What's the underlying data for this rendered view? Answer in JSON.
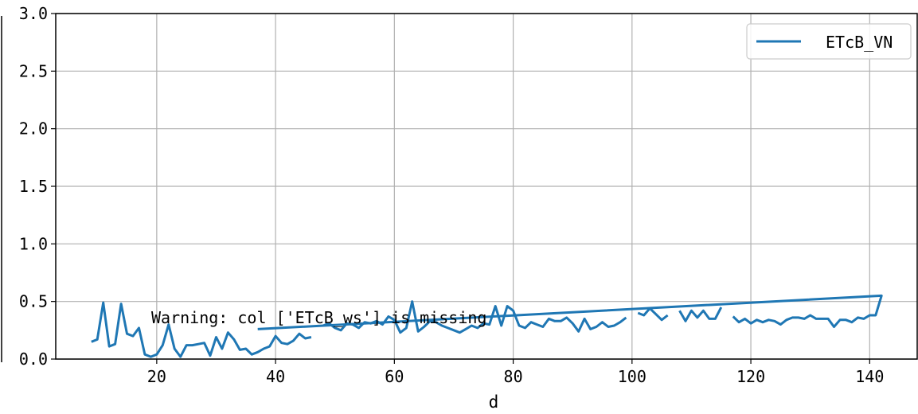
{
  "chart_data": {
    "type": "line",
    "title": "",
    "xlabel": "d",
    "ylabel": "",
    "xlim": [
      3,
      148
    ],
    "ylim": [
      0,
      3.0
    ],
    "x_ticks": [
      20,
      40,
      60,
      80,
      100,
      120,
      140
    ],
    "y_ticks": [
      0.0,
      0.5,
      1.0,
      1.5,
      2.0,
      2.5,
      3.0
    ],
    "x_tick_labels": [
      "20",
      "40",
      "60",
      "80",
      "100",
      "120",
      "140"
    ],
    "y_tick_labels": [
      "0.0",
      "0.5",
      "1.0",
      "1.5",
      "2.0",
      "2.5",
      "3.0"
    ],
    "grid": true,
    "legend": {
      "position": "top-right",
      "entries": [
        "ETcB_VN"
      ]
    },
    "annotation": "Warning: col ['ETcB_ws'] is missing",
    "series": [
      {
        "name": "ETcB_VN",
        "color": "#1f77b4",
        "segments": [
          [
            [
              9,
              0.15
            ],
            [
              10,
              0.17
            ],
            [
              11,
              0.49
            ],
            [
              12,
              0.11
            ],
            [
              13,
              0.13
            ],
            [
              14,
              0.48
            ],
            [
              15,
              0.22
            ],
            [
              16,
              0.2
            ],
            [
              17,
              0.27
            ],
            [
              18,
              0.04
            ],
            [
              19,
              0.02
            ],
            [
              20,
              0.04
            ],
            [
              21,
              0.12
            ],
            [
              22,
              0.3
            ],
            [
              23,
              0.09
            ],
            [
              24,
              0.02
            ],
            [
              25,
              0.12
            ],
            [
              26,
              0.12
            ],
            [
              27,
              0.13
            ],
            [
              28,
              0.14
            ],
            [
              29,
              0.03
            ],
            [
              30,
              0.19
            ],
            [
              31,
              0.09
            ],
            [
              32,
              0.23
            ],
            [
              33,
              0.17
            ],
            [
              34,
              0.08
            ],
            [
              35,
              0.09
            ],
            [
              36,
              0.04
            ],
            [
              37,
              0.06
            ],
            [
              38,
              0.09
            ],
            [
              39,
              0.11
            ],
            [
              40,
              0.2
            ],
            [
              41,
              0.14
            ],
            [
              42,
              0.13
            ],
            [
              43,
              0.16
            ],
            [
              44,
              0.22
            ],
            [
              45,
              0.18
            ],
            [
              46,
              0.19
            ]
          ],
          [
            [
              48,
              0.29
            ],
            [
              49,
              0.31
            ],
            [
              50,
              0.27
            ],
            [
              51,
              0.25
            ],
            [
              52,
              0.31
            ],
            [
              53,
              0.3
            ],
            [
              54,
              0.27
            ],
            [
              55,
              0.32
            ],
            [
              56,
              0.31
            ],
            [
              57,
              0.33
            ],
            [
              58,
              0.3
            ],
            [
              59,
              0.37
            ],
            [
              60,
              0.34
            ],
            [
              61,
              0.23
            ],
            [
              62,
              0.27
            ],
            [
              63,
              0.5
            ],
            [
              64,
              0.24
            ],
            [
              65,
              0.28
            ],
            [
              66,
              0.33
            ],
            [
              67,
              0.32
            ],
            [
              68,
              0.29
            ],
            [
              69,
              0.27
            ],
            [
              70,
              0.25
            ],
            [
              71,
              0.23
            ],
            [
              72,
              0.26
            ],
            [
              73,
              0.29
            ],
            [
              74,
              0.27
            ],
            [
              75,
              0.31
            ],
            [
              76,
              0.3
            ],
            [
              77,
              0.46
            ],
            [
              78,
              0.29
            ],
            [
              79,
              0.46
            ],
            [
              80,
              0.42
            ],
            [
              81,
              0.29
            ],
            [
              82,
              0.27
            ],
            [
              83,
              0.32
            ],
            [
              84,
              0.3
            ],
            [
              85,
              0.28
            ],
            [
              86,
              0.35
            ],
            [
              87,
              0.33
            ],
            [
              88,
              0.33
            ],
            [
              89,
              0.36
            ],
            [
              90,
              0.31
            ],
            [
              91,
              0.24
            ],
            [
              92,
              0.35
            ],
            [
              93,
              0.26
            ],
            [
              94,
              0.28
            ],
            [
              95,
              0.32
            ],
            [
              96,
              0.28
            ],
            [
              97,
              0.29
            ],
            [
              98,
              0.32
            ],
            [
              99,
              0.36
            ]
          ],
          [
            [
              101,
              0.4
            ],
            [
              102,
              0.38
            ],
            [
              103,
              0.44
            ],
            [
              104,
              0.39
            ],
            [
              105,
              0.34
            ],
            [
              106,
              0.38
            ]
          ],
          [
            [
              108,
              0.42
            ],
            [
              109,
              0.33
            ],
            [
              110,
              0.42
            ],
            [
              111,
              0.36
            ],
            [
              112,
              0.42
            ],
            [
              113,
              0.35
            ],
            [
              114,
              0.35
            ],
            [
              115,
              0.45
            ]
          ],
          [
            [
              117,
              0.37
            ],
            [
              118,
              0.32
            ],
            [
              119,
              0.35
            ],
            [
              120,
              0.31
            ],
            [
              121,
              0.34
            ],
            [
              122,
              0.32
            ],
            [
              123,
              0.34
            ],
            [
              124,
              0.33
            ],
            [
              125,
              0.3
            ],
            [
              126,
              0.34
            ],
            [
              127,
              0.36
            ],
            [
              128,
              0.36
            ],
            [
              129,
              0.35
            ],
            [
              130,
              0.38
            ],
            [
              131,
              0.35
            ],
            [
              132,
              0.35
            ],
            [
              133,
              0.35
            ],
            [
              134,
              0.28
            ],
            [
              135,
              0.34
            ],
            [
              136,
              0.34
            ],
            [
              137,
              0.32
            ],
            [
              138,
              0.36
            ],
            [
              139,
              0.35
            ],
            [
              140,
              0.38
            ],
            [
              141,
              0.38
            ],
            [
              142,
              0.55
            ],
            [
              37,
              0.26
            ]
          ]
        ]
      }
    ]
  }
}
